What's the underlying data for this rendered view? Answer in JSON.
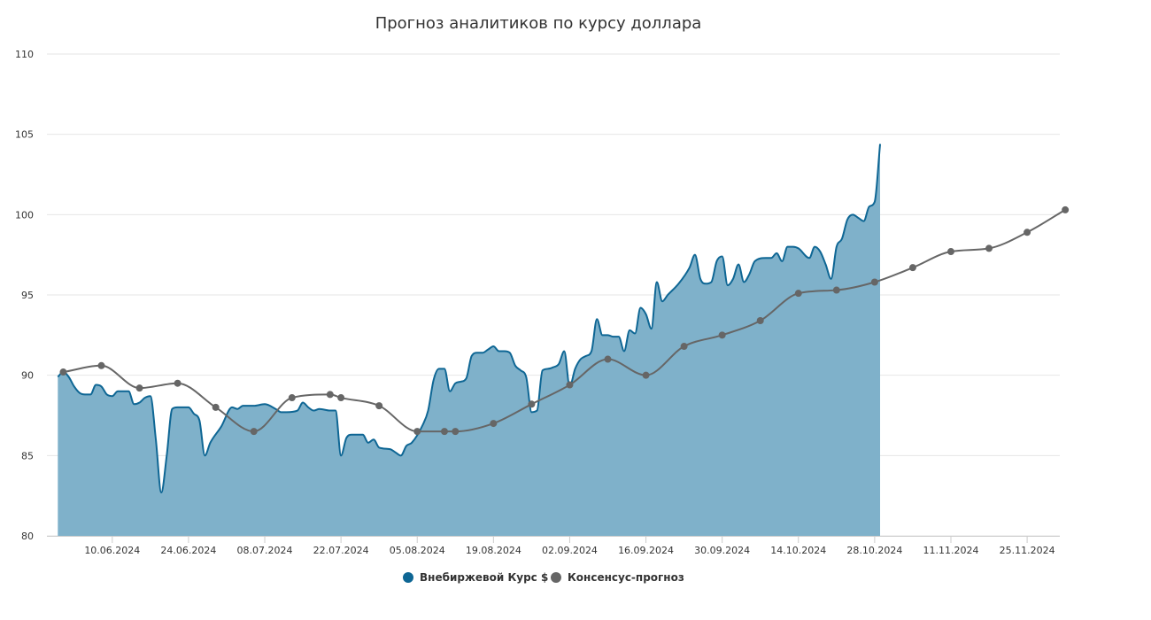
{
  "chart_data": {
    "type": "area",
    "title": "Прогноз аналитиков по курсу доллара",
    "xlabel": "",
    "ylabel": "",
    "ylim": [
      80,
      110
    ],
    "y_ticks": [
      80,
      85,
      90,
      95,
      100,
      105,
      110
    ],
    "xlim": [
      "2024-05-29",
      "2024-12-01"
    ],
    "x_ticks": [
      "2024-06-10",
      "2024-06-24",
      "2024-07-08",
      "2024-07-22",
      "2024-08-05",
      "2024-08-19",
      "2024-09-02",
      "2024-09-16",
      "2024-09-30",
      "2024-10-14",
      "2024-10-28",
      "2024-11-11",
      "2024-11-25"
    ],
    "x_tick_labels": [
      "10.06.2024",
      "24.06.2024",
      "08.07.2024",
      "22.07.2024",
      "05.08.2024",
      "19.08.2024",
      "02.09.2024",
      "16.09.2024",
      "30.09.2024",
      "14.10.2024",
      "28.10.2024",
      "11.11.2024",
      "25.11.2024"
    ],
    "grid": "horizontal",
    "legend_position": "bottom-center",
    "series": [
      {
        "name": "Внебиржевой Курс $",
        "kind": "area",
        "color": "#0e6694",
        "fill": "#7fb1ca",
        "points": [
          [
            "2024-05-31",
            89.9
          ],
          [
            "2024-06-01",
            90.2
          ],
          [
            "2024-06-02",
            89.9
          ],
          [
            "2024-06-03",
            89.3
          ],
          [
            "2024-06-04",
            88.9
          ],
          [
            "2024-06-05",
            88.8
          ],
          [
            "2024-06-06",
            88.8
          ],
          [
            "2024-06-07",
            89.4
          ],
          [
            "2024-06-08",
            89.3
          ],
          [
            "2024-06-09",
            88.8
          ],
          [
            "2024-06-10",
            88.7
          ],
          [
            "2024-06-11",
            89.0
          ],
          [
            "2024-06-12",
            89.0
          ],
          [
            "2024-06-13",
            89.0
          ],
          [
            "2024-06-14",
            88.2
          ],
          [
            "2024-06-15",
            88.3
          ],
          [
            "2024-06-16",
            88.6
          ],
          [
            "2024-06-17",
            88.7
          ],
          [
            "2024-06-18",
            86.0
          ],
          [
            "2024-06-19",
            82.7
          ],
          [
            "2024-06-20",
            85.0
          ],
          [
            "2024-06-21",
            87.9
          ],
          [
            "2024-06-22",
            88.0
          ],
          [
            "2024-06-23",
            88.0
          ],
          [
            "2024-06-24",
            88.0
          ],
          [
            "2024-06-25",
            87.6
          ],
          [
            "2024-06-26",
            87.2
          ],
          [
            "2024-06-27",
            85.0
          ],
          [
            "2024-06-28",
            85.8
          ],
          [
            "2024-06-30",
            86.8
          ],
          [
            "2024-07-02",
            88.0
          ],
          [
            "2024-07-03",
            87.9
          ],
          [
            "2024-07-04",
            88.1
          ],
          [
            "2024-07-06",
            88.1
          ],
          [
            "2024-07-08",
            88.2
          ],
          [
            "2024-07-10",
            87.9
          ],
          [
            "2024-07-11",
            87.7
          ],
          [
            "2024-07-12",
            87.7
          ],
          [
            "2024-07-14",
            87.8
          ],
          [
            "2024-07-15",
            88.3
          ],
          [
            "2024-07-16",
            88.0
          ],
          [
            "2024-07-17",
            87.8
          ],
          [
            "2024-07-18",
            87.9
          ],
          [
            "2024-07-20",
            87.8
          ],
          [
            "2024-07-21",
            87.8
          ],
          [
            "2024-07-22",
            85.0
          ],
          [
            "2024-07-23",
            86.1
          ],
          [
            "2024-07-24",
            86.3
          ],
          [
            "2024-07-25",
            86.3
          ],
          [
            "2024-07-26",
            86.3
          ],
          [
            "2024-07-27",
            85.8
          ],
          [
            "2024-07-28",
            86.0
          ],
          [
            "2024-07-29",
            85.5
          ],
          [
            "2024-07-31",
            85.4
          ],
          [
            "2024-08-01",
            85.2
          ],
          [
            "2024-08-02",
            85.0
          ],
          [
            "2024-08-03",
            85.6
          ],
          [
            "2024-08-04",
            85.8
          ],
          [
            "2024-08-06",
            86.9
          ],
          [
            "2024-08-07",
            87.8
          ],
          [
            "2024-08-08",
            89.7
          ],
          [
            "2024-08-09",
            90.4
          ],
          [
            "2024-08-10",
            90.4
          ],
          [
            "2024-08-11",
            89.0
          ],
          [
            "2024-08-12",
            89.5
          ],
          [
            "2024-08-13",
            89.6
          ],
          [
            "2024-08-14",
            89.8
          ],
          [
            "2024-08-15",
            91.2
          ],
          [
            "2024-08-16",
            91.4
          ],
          [
            "2024-08-17",
            91.4
          ],
          [
            "2024-08-18",
            91.6
          ],
          [
            "2024-08-19",
            91.8
          ],
          [
            "2024-08-20",
            91.5
          ],
          [
            "2024-08-21",
            91.5
          ],
          [
            "2024-08-22",
            91.4
          ],
          [
            "2024-08-23",
            90.6
          ],
          [
            "2024-08-24",
            90.3
          ],
          [
            "2024-08-25",
            89.9
          ],
          [
            "2024-08-26",
            87.7
          ],
          [
            "2024-08-27",
            87.8
          ],
          [
            "2024-08-28",
            90.3
          ],
          [
            "2024-08-29",
            90.4
          ],
          [
            "2024-08-30",
            90.5
          ],
          [
            "2024-08-31",
            90.7
          ],
          [
            "2024-09-01",
            91.5
          ],
          [
            "2024-09-02",
            89.3
          ],
          [
            "2024-09-03",
            90.4
          ],
          [
            "2024-09-04",
            91.0
          ],
          [
            "2024-09-05",
            91.2
          ],
          [
            "2024-09-06",
            91.5
          ],
          [
            "2024-09-07",
            93.5
          ],
          [
            "2024-09-08",
            92.5
          ],
          [
            "2024-09-09",
            92.5
          ],
          [
            "2024-09-10",
            92.4
          ],
          [
            "2024-09-11",
            92.4
          ],
          [
            "2024-09-12",
            91.5
          ],
          [
            "2024-09-13",
            92.8
          ],
          [
            "2024-09-14",
            92.6
          ],
          [
            "2024-09-15",
            94.2
          ],
          [
            "2024-09-16",
            93.8
          ],
          [
            "2024-09-17",
            92.9
          ],
          [
            "2024-09-18",
            95.8
          ],
          [
            "2024-09-19",
            94.6
          ],
          [
            "2024-09-20",
            95.0
          ],
          [
            "2024-09-22",
            95.7
          ],
          [
            "2024-09-24",
            96.7
          ],
          [
            "2024-09-25",
            97.5
          ],
          [
            "2024-09-26",
            96.0
          ],
          [
            "2024-09-27",
            95.7
          ],
          [
            "2024-09-28",
            95.8
          ],
          [
            "2024-09-29",
            97.1
          ],
          [
            "2024-09-30",
            97.4
          ],
          [
            "2024-10-01",
            95.6
          ],
          [
            "2024-10-02",
            96.0
          ],
          [
            "2024-10-03",
            96.9
          ],
          [
            "2024-10-04",
            95.8
          ],
          [
            "2024-10-05",
            96.3
          ],
          [
            "2024-10-06",
            97.1
          ],
          [
            "2024-10-08",
            97.3
          ],
          [
            "2024-10-09",
            97.3
          ],
          [
            "2024-10-10",
            97.6
          ],
          [
            "2024-10-11",
            97.1
          ],
          [
            "2024-10-12",
            98.0
          ],
          [
            "2024-10-13",
            98.0
          ],
          [
            "2024-10-14",
            97.9
          ],
          [
            "2024-10-16",
            97.3
          ],
          [
            "2024-10-17",
            98.0
          ],
          [
            "2024-10-18",
            97.7
          ],
          [
            "2024-10-19",
            96.9
          ],
          [
            "2024-10-20",
            96.0
          ],
          [
            "2024-10-21",
            98.0
          ],
          [
            "2024-10-22",
            98.5
          ],
          [
            "2024-10-23",
            99.7
          ],
          [
            "2024-10-24",
            100.0
          ],
          [
            "2024-10-25",
            99.8
          ],
          [
            "2024-10-26",
            99.6
          ],
          [
            "2024-10-27",
            100.5
          ],
          [
            "2024-10-28",
            100.8
          ],
          [
            "2024-10-29",
            104.4
          ]
        ]
      },
      {
        "name": "Консенсус-прогноз",
        "kind": "line",
        "color": "#666666",
        "points": [
          [
            "2024-06-01",
            90.2
          ],
          [
            "2024-06-08",
            90.6
          ],
          [
            "2024-06-15",
            89.2
          ],
          [
            "2024-06-22",
            89.5
          ],
          [
            "2024-06-29",
            88.0
          ],
          [
            "2024-07-06",
            86.5
          ],
          [
            "2024-07-13",
            88.6
          ],
          [
            "2024-07-20",
            88.8
          ],
          [
            "2024-07-22",
            88.6
          ],
          [
            "2024-07-29",
            88.1
          ],
          [
            "2024-08-05",
            86.5
          ],
          [
            "2024-08-10",
            86.5
          ],
          [
            "2024-08-12",
            86.5
          ],
          [
            "2024-08-19",
            87.0
          ],
          [
            "2024-08-26",
            88.2
          ],
          [
            "2024-09-02",
            89.4
          ],
          [
            "2024-09-09",
            91.0
          ],
          [
            "2024-09-16",
            90.0
          ],
          [
            "2024-09-23",
            91.8
          ],
          [
            "2024-09-30",
            92.5
          ],
          [
            "2024-10-07",
            93.4
          ],
          [
            "2024-10-14",
            95.1
          ],
          [
            "2024-10-21",
            95.3
          ],
          [
            "2024-10-28",
            95.8
          ],
          [
            "2024-11-04",
            96.7
          ],
          [
            "2024-11-11",
            97.7
          ],
          [
            "2024-11-18",
            97.9
          ],
          [
            "2024-11-25",
            98.9
          ],
          [
            "2024-12-02",
            100.3
          ]
        ]
      }
    ]
  }
}
